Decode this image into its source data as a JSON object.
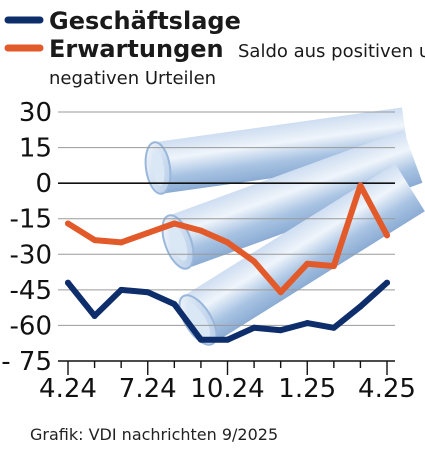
{
  "chart_data": {
    "type": "line",
    "x": [
      "4.24",
      "5.24",
      "6.24",
      "7.24",
      "8.24",
      "9.24",
      "10.24",
      "11.24",
      "12.24",
      "1.25",
      "2.25",
      "3.25",
      "4.25"
    ],
    "x_tick_labels": [
      "4.24",
      "7.24",
      "10.24",
      "1.25",
      "4.25"
    ],
    "x_tick_positions": [
      "4.24",
      "7.24",
      "10.24",
      "1.25",
      "4.25"
    ],
    "series": [
      {
        "name": "Geschäftslage",
        "color": "#0d2d6b",
        "values": [
          -42,
          -56,
          -45,
          -46,
          -51,
          -66,
          -66,
          -61,
          -62,
          -59,
          -61,
          -52,
          -42
        ]
      },
      {
        "name": "Erwartungen",
        "color": "#e25a2a",
        "values": [
          -17,
          -24,
          -25,
          -21,
          -17,
          -20,
          -25,
          -33,
          -46,
          -34,
          -35,
          -1,
          -22
        ]
      }
    ],
    "legend_note": "Saldo aus positiven und negativen Urteilen",
    "y_ticks": [
      30,
      15,
      0,
      -15,
      -30,
      -45,
      -60,
      -75
    ],
    "y_tick_labels": [
      "30",
      "15",
      "0",
      "-15",
      "-30",
      "-45",
      "-60",
      "- 75"
    ],
    "ylim": [
      -75,
      30
    ],
    "grid": "horizontal",
    "legend_position": "top-left",
    "credit": "Grafik: VDI nachrichten 9/2025",
    "background_illustration": "pipes-illustration"
  }
}
